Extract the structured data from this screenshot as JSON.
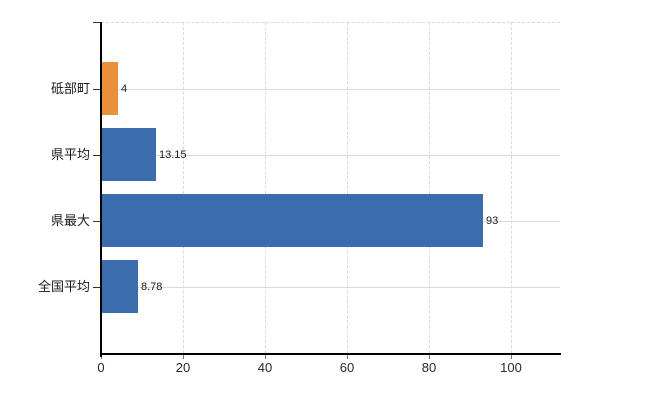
{
  "chart_data": {
    "type": "bar",
    "orientation": "horizontal",
    "title": "",
    "xlabel": "",
    "ylabel": "",
    "categories": [
      "砥部町",
      "県平均",
      "県最大",
      "全国平均"
    ],
    "values": [
      4,
      13.15,
      93,
      8.78
    ],
    "value_labels": [
      "4",
      "13.15",
      "93",
      "8.78"
    ],
    "bar_colors": [
      "#ea8f3c",
      "#3b6dae",
      "#3b6dae",
      "#3b6dae"
    ],
    "x_ticks": [
      0,
      20,
      40,
      60,
      80,
      100
    ],
    "x_tick_labels": [
      "0",
      "20",
      "40",
      "60",
      "80",
      "100"
    ],
    "xlim": [
      0,
      112
    ],
    "grid": true,
    "legend": false,
    "colors": {
      "highlight_orange": "#ea8f3c",
      "series_blue": "#3b6dae",
      "gridline": "#d9d9d9",
      "axis": "#000000",
      "text": "#1a1a1a"
    }
  }
}
